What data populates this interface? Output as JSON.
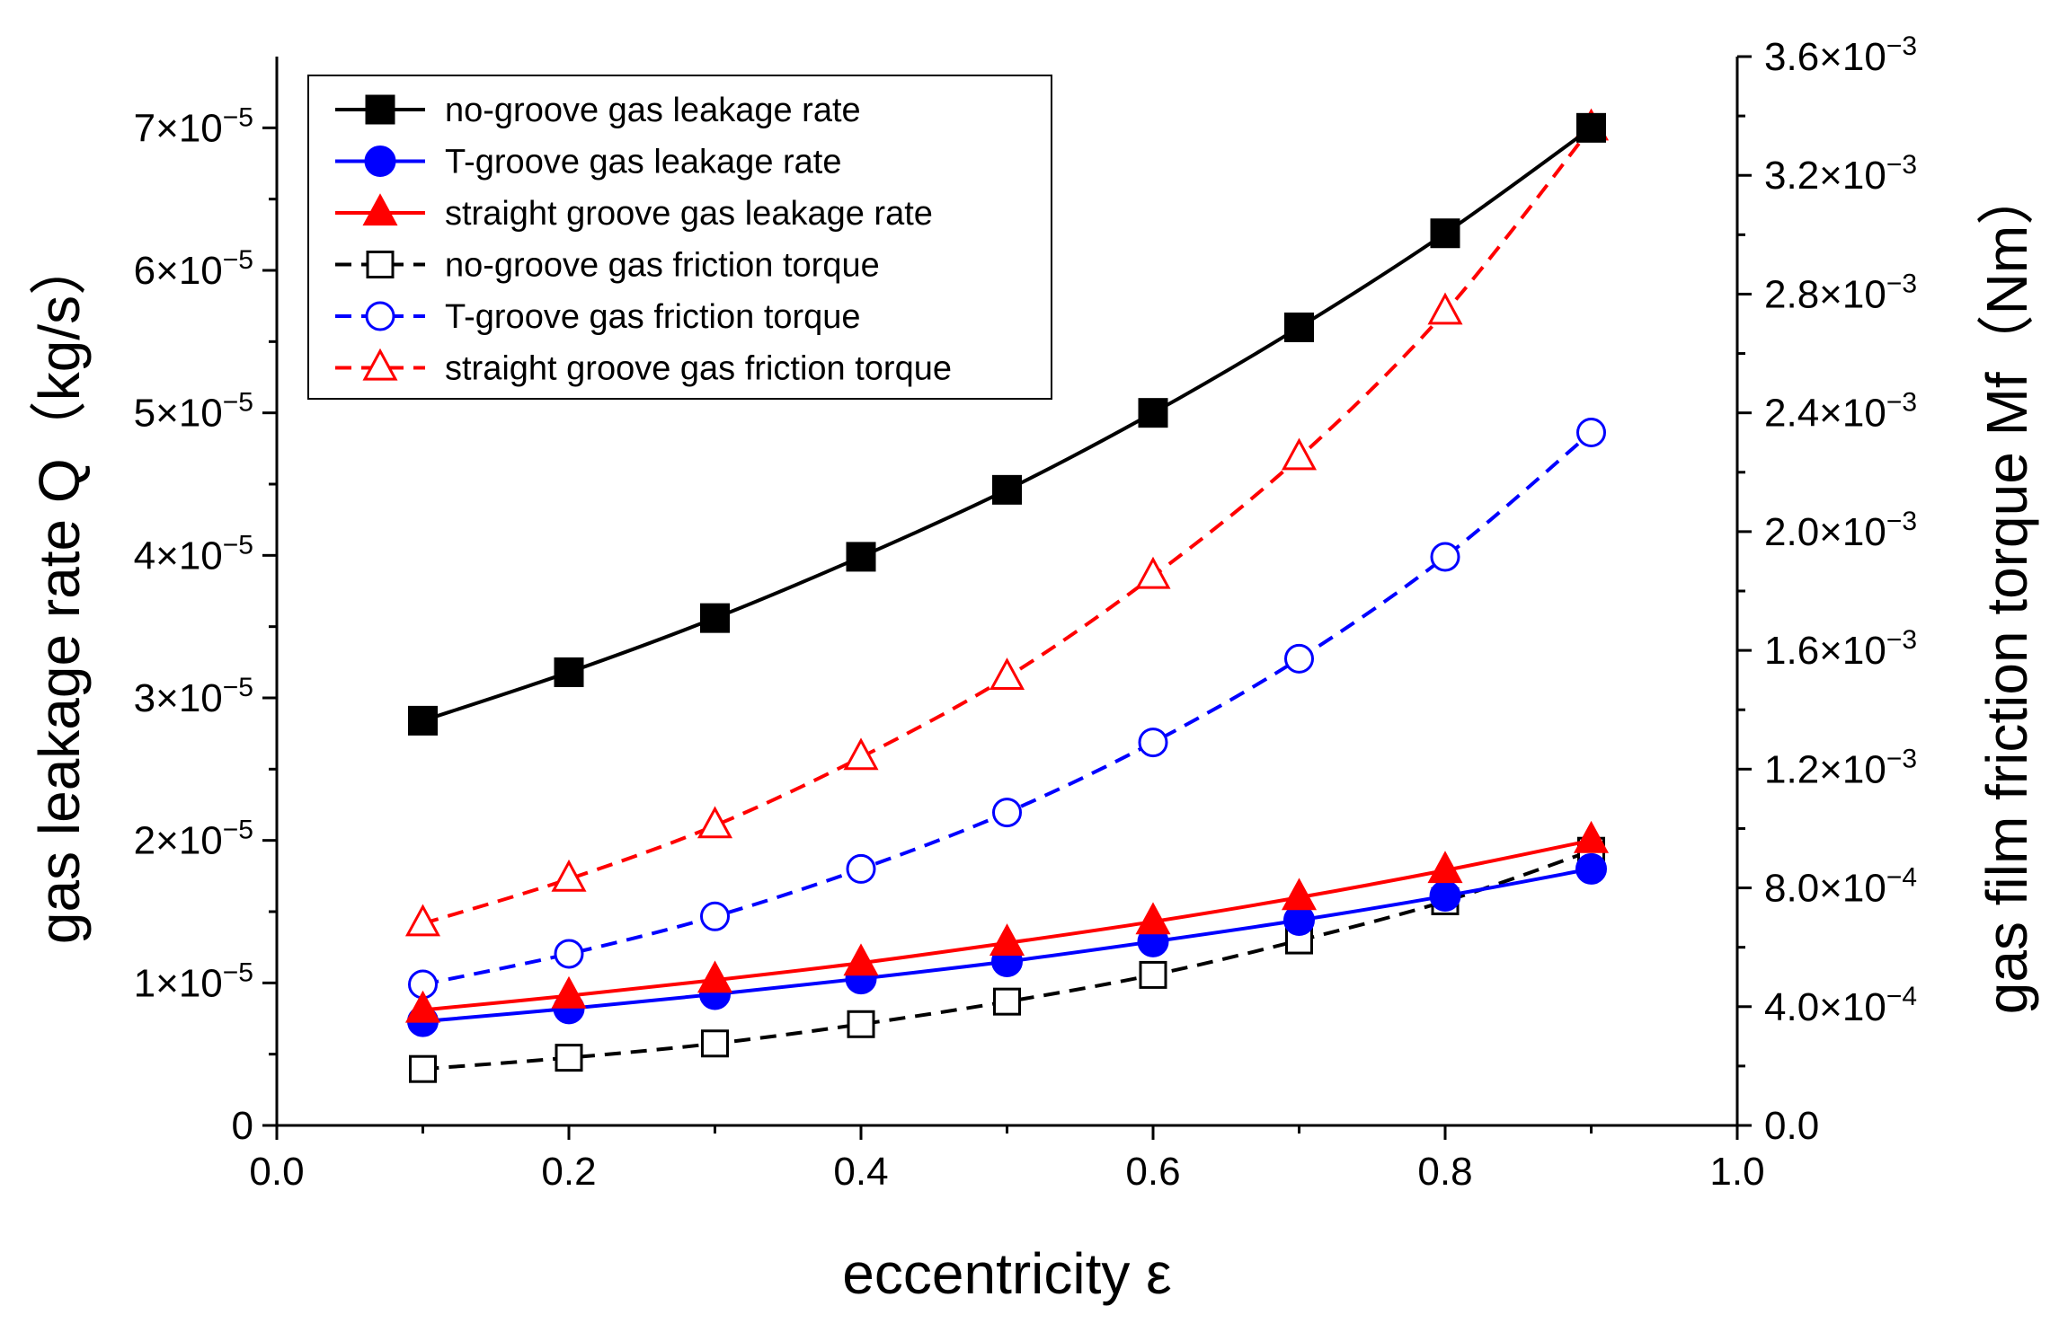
{
  "chart_data": {
    "type": "line",
    "title": "",
    "xlabel": "eccentricity ε",
    "ylabel": "gas leakage rate Q（kg/s）",
    "y2label": "gas film friction torque Mf（Nm）",
    "xlim": [
      0,
      1
    ],
    "ylim": [
      0,
      7.5e-05
    ],
    "y2lim": [
      0,
      0.0036
    ],
    "x_ticks": [
      {
        "value": 0.0,
        "label": "0.0"
      },
      {
        "value": 0.2,
        "label": "0.2"
      },
      {
        "value": 0.4,
        "label": "0.4"
      },
      {
        "value": 0.6,
        "label": "0.6"
      },
      {
        "value": 0.8,
        "label": "0.8"
      },
      {
        "value": 1.0,
        "label": "1.0"
      }
    ],
    "y_ticks": [
      {
        "value": 0,
        "mant": "0",
        "exp": ""
      },
      {
        "value": 1e-05,
        "mant": "1×10",
        "exp": "−5"
      },
      {
        "value": 2e-05,
        "mant": "2×10",
        "exp": "−5"
      },
      {
        "value": 3e-05,
        "mant": "3×10",
        "exp": "−5"
      },
      {
        "value": 4e-05,
        "mant": "4×10",
        "exp": "−5"
      },
      {
        "value": 5e-05,
        "mant": "5×10",
        "exp": "−5"
      },
      {
        "value": 6e-05,
        "mant": "6×10",
        "exp": "−5"
      },
      {
        "value": 7e-05,
        "mant": "7×10",
        "exp": "−5"
      }
    ],
    "y2_ticks": [
      {
        "value": 0.0,
        "mant": "0.0",
        "exp": ""
      },
      {
        "value": 0.0004,
        "mant": "4.0×10",
        "exp": "−4"
      },
      {
        "value": 0.0008,
        "mant": "8.0×10",
        "exp": "−4"
      },
      {
        "value": 0.0012,
        "mant": "1.2×10",
        "exp": "−3"
      },
      {
        "value": 0.0016,
        "mant": "1.6×10",
        "exp": "−3"
      },
      {
        "value": 0.002,
        "mant": "2.0×10",
        "exp": "−3"
      },
      {
        "value": 0.0024,
        "mant": "2.4×10",
        "exp": "−3"
      },
      {
        "value": 0.0028,
        "mant": "2.8×10",
        "exp": "−3"
      },
      {
        "value": 0.0032,
        "mant": "3.2×10",
        "exp": "−3"
      },
      {
        "value": 0.0036,
        "mant": "3.6×10",
        "exp": "−3"
      }
    ],
    "x": [
      0.1,
      0.2,
      0.3,
      0.4,
      0.5,
      0.6,
      0.7,
      0.8,
      0.9
    ],
    "series": [
      {
        "name": "no-groove gas leakage rate",
        "axis": "left",
        "color": "#000000",
        "marker": "square",
        "filled": true,
        "dashed": false,
        "values": [
          2.84e-05,
          3.18e-05,
          3.56e-05,
          3.99e-05,
          4.46e-05,
          5e-05,
          5.6e-05,
          6.26e-05,
          7e-05
        ]
      },
      {
        "name": "T-groove gas leakage rate",
        "axis": "left",
        "color": "#0000ff",
        "marker": "circle",
        "filled": true,
        "dashed": false,
        "values": [
          7.3e-06,
          8.2e-06,
          9.2e-06,
          1.03e-05,
          1.15e-05,
          1.29e-05,
          1.44e-05,
          1.61e-05,
          1.8e-05
        ]
      },
      {
        "name": "straight groove gas leakage rate",
        "axis": "left",
        "color": "#ff0000",
        "marker": "triangle",
        "filled": true,
        "dashed": false,
        "values": [
          8.1e-06,
          9.1e-06,
          1.02e-05,
          1.14e-05,
          1.28e-05,
          1.43e-05,
          1.6e-05,
          1.79e-05,
          2e-05
        ]
      },
      {
        "name": "no-groove gas friction torque",
        "axis": "right",
        "color": "#000000",
        "marker": "square",
        "filled": false,
        "dashed": true,
        "values": [
          0.00019,
          0.000228,
          0.000276,
          0.000341,
          0.000417,
          0.000507,
          0.000623,
          0.000755,
          0.000925
        ]
      },
      {
        "name": "T-groove gas friction torque",
        "axis": "right",
        "color": "#0000ff",
        "marker": "circle",
        "filled": false,
        "dashed": true,
        "values": [
          0.000475,
          0.000578,
          0.000704,
          0.000864,
          0.001054,
          0.00129,
          0.001572,
          0.001915,
          0.002334
        ]
      },
      {
        "name": "straight groove gas friction torque",
        "axis": "right",
        "color": "#ff0000",
        "marker": "triangle",
        "filled": false,
        "dashed": true,
        "values": [
          0.00068,
          0.00083,
          0.00101,
          0.00124,
          0.00151,
          0.00185,
          0.00225,
          0.00274,
          0.00336
        ]
      }
    ],
    "legend": "top-left",
    "grid": false
  }
}
